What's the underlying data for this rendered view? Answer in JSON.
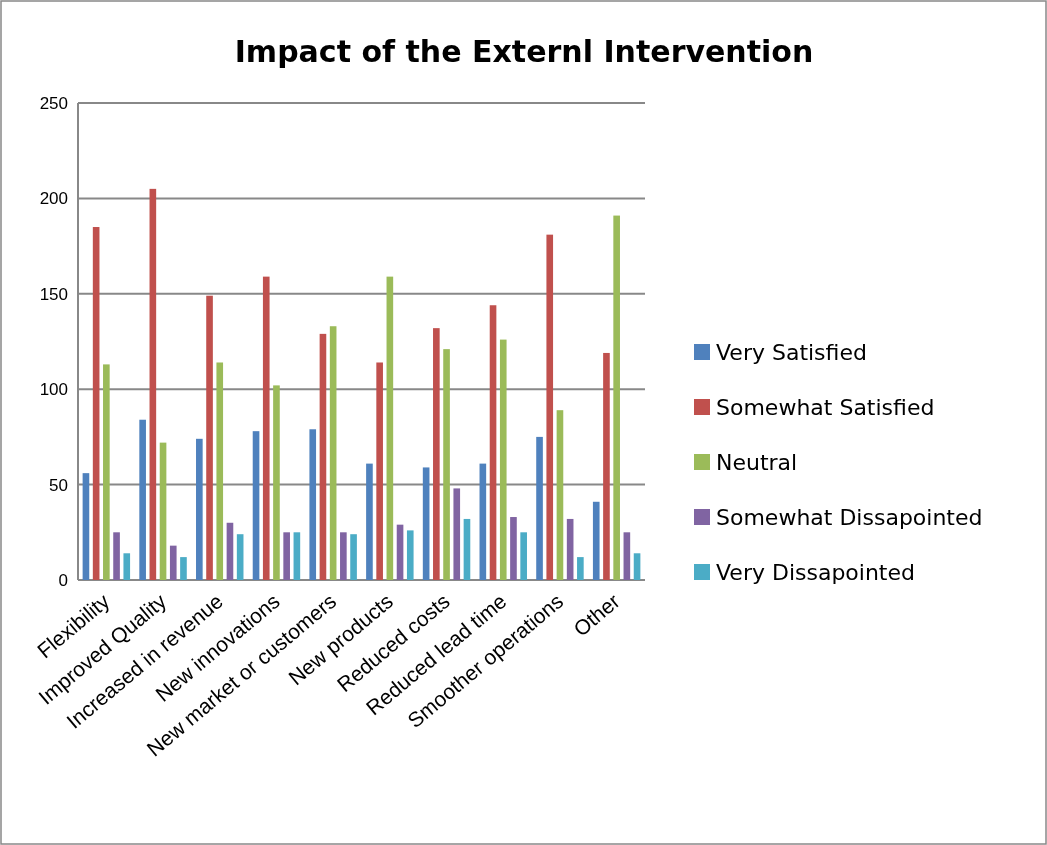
{
  "chart_data": {
    "type": "bar",
    "title": "Impact of the Externl Intervention",
    "categories": [
      "Flexibility",
      "Improved Quality",
      "Increased in revenue",
      "New innovations",
      "New market or customers",
      "New products",
      "Reduced costs",
      "Reduced lead time",
      "Smoother operations",
      "Other"
    ],
    "series": [
      {
        "name": "Very Satisfied",
        "color": "#4f81bd",
        "values": [
          56,
          84,
          74,
          78,
          79,
          61,
          59,
          61,
          75,
          41
        ]
      },
      {
        "name": "Somewhat Satisfied",
        "color": "#c0504d",
        "values": [
          185,
          205,
          149,
          159,
          129,
          114,
          132,
          144,
          181,
          119
        ]
      },
      {
        "name": "Neutral",
        "color": "#9bbb59",
        "values": [
          113,
          72,
          114,
          102,
          133,
          159,
          121,
          126,
          89,
          191
        ]
      },
      {
        "name": "Somewhat Dissapointed",
        "color": "#8064a2",
        "values": [
          25,
          18,
          30,
          25,
          25,
          29,
          48,
          33,
          32,
          25
        ]
      },
      {
        "name": "Very Dissapointed",
        "color": "#4bacc6",
        "values": [
          14,
          12,
          24,
          25,
          24,
          26,
          32,
          25,
          12,
          14
        ]
      }
    ],
    "ylim": [
      0,
      250
    ],
    "yticks": [
      0,
      50,
      100,
      150,
      200,
      250
    ],
    "grid": "y",
    "legend": "right"
  }
}
